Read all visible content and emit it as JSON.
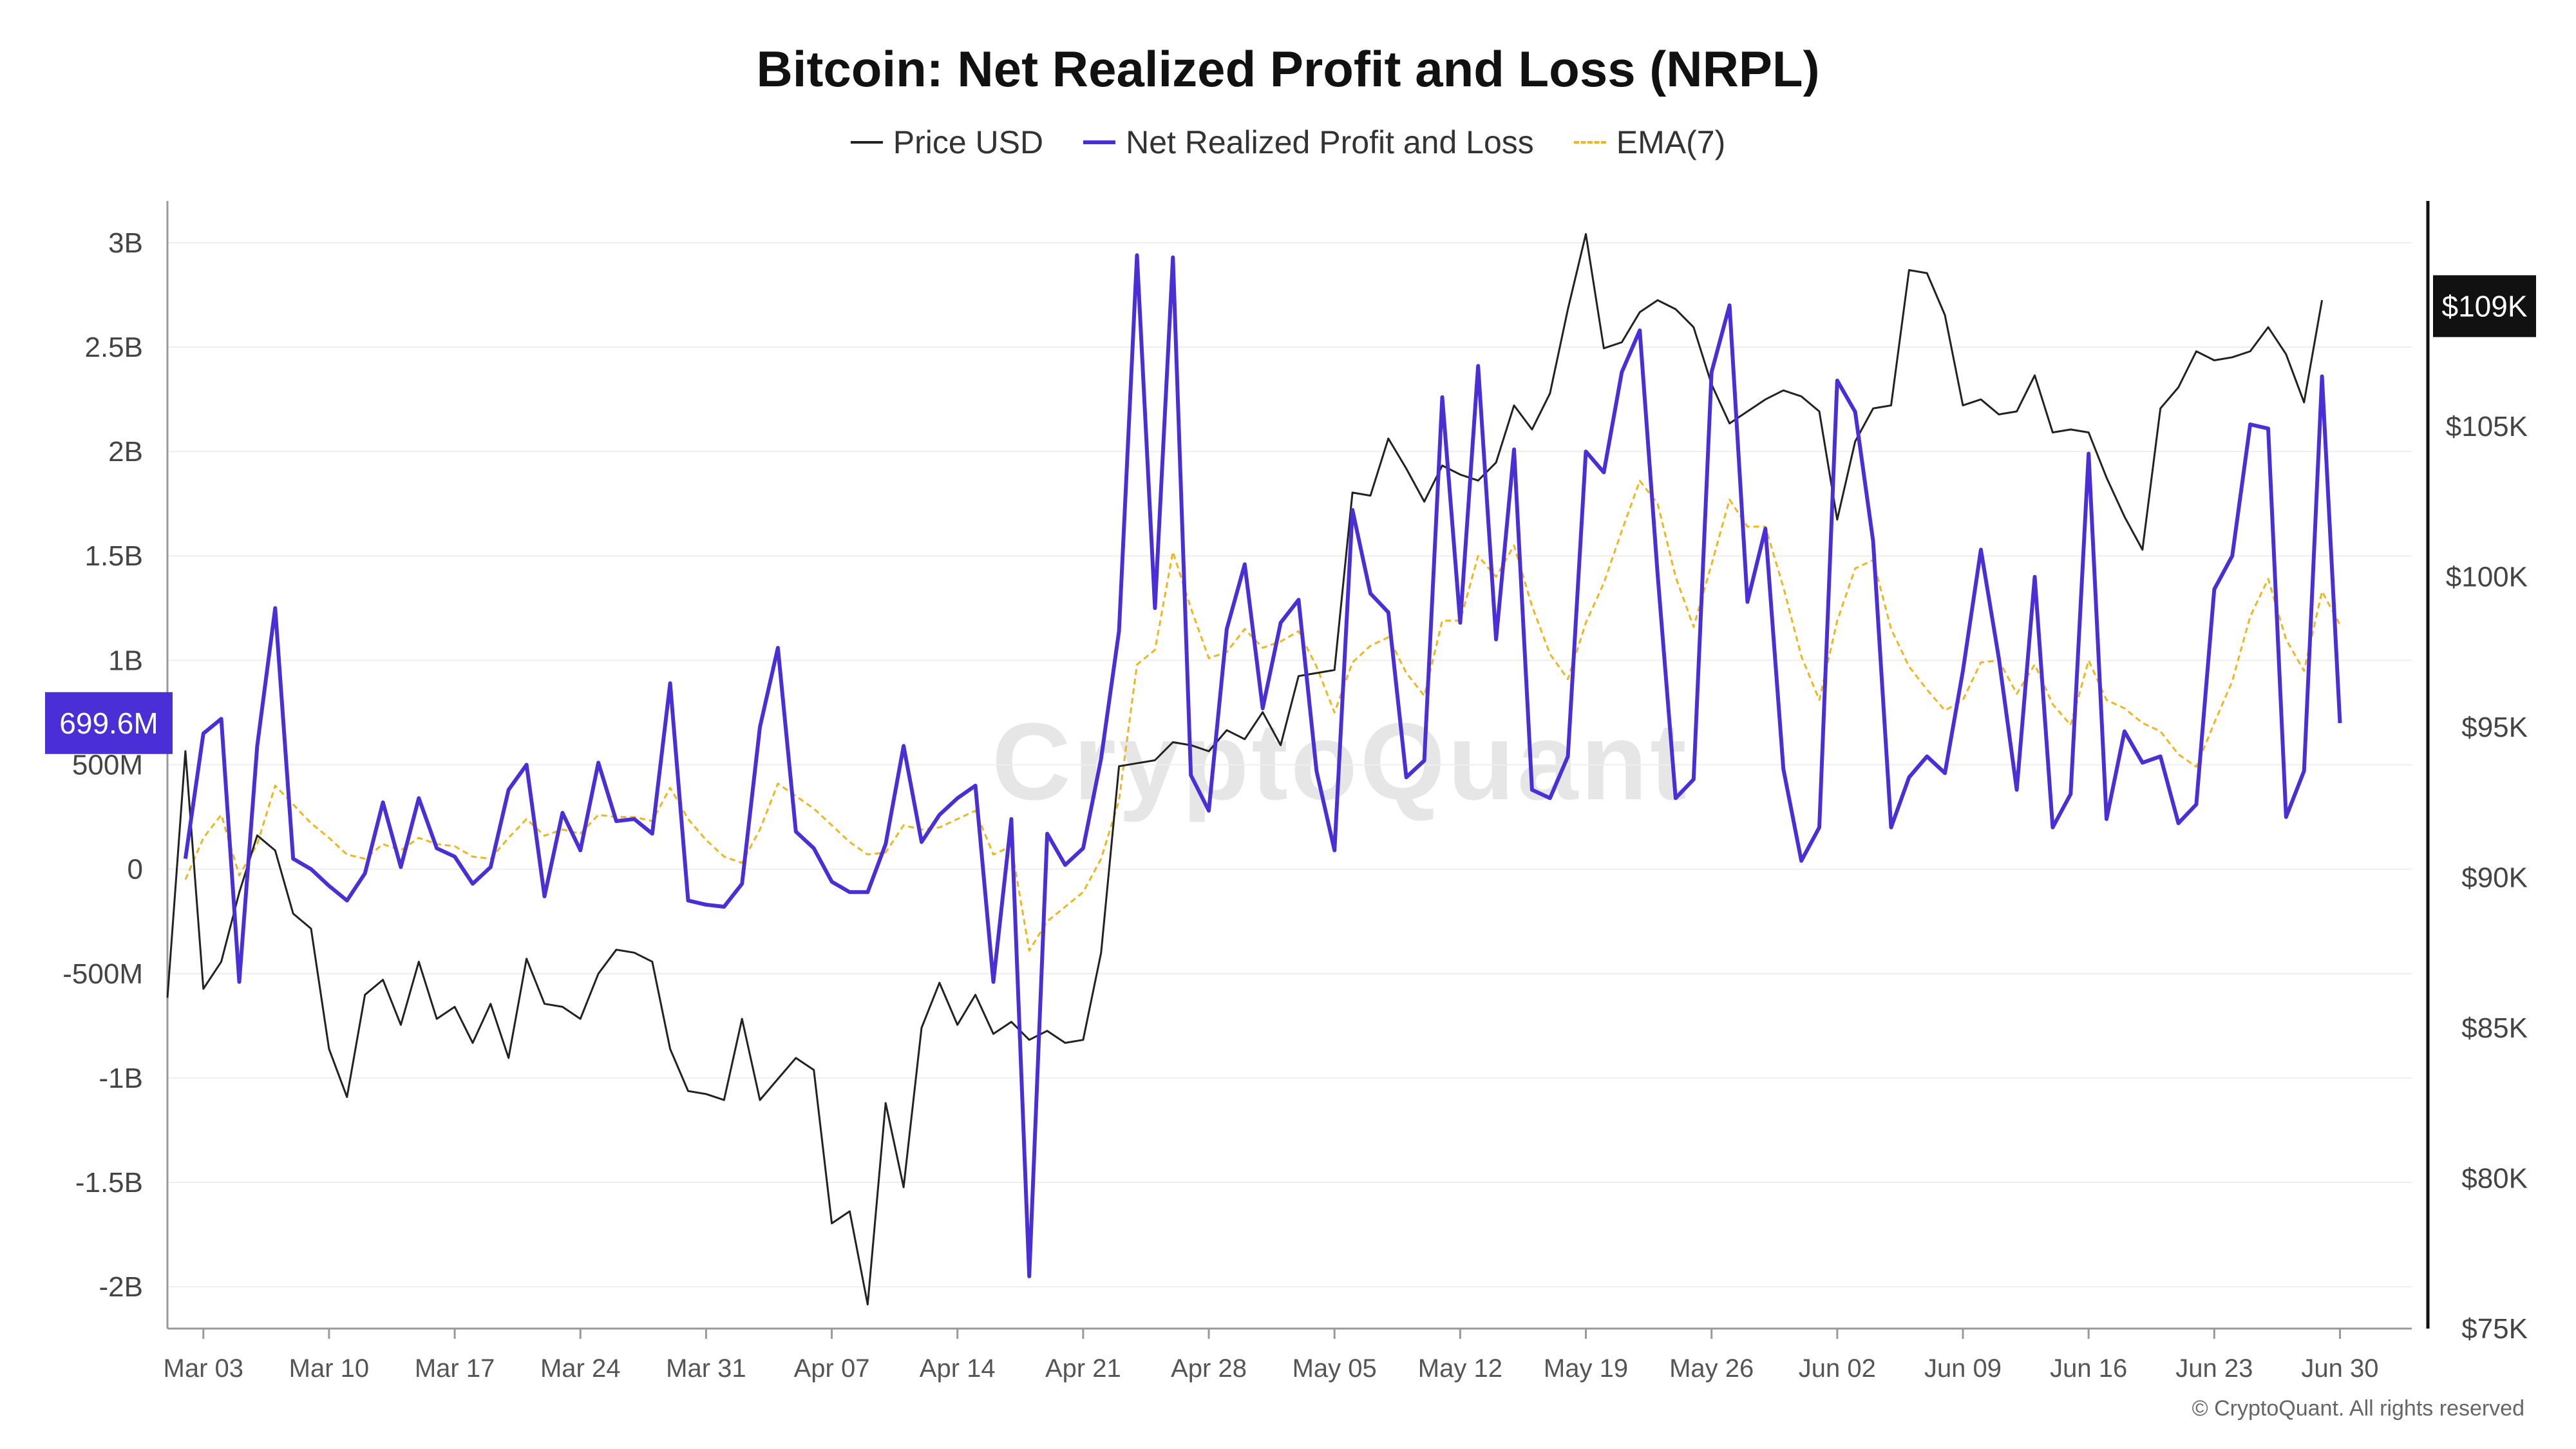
{
  "title": "Bitcoin: Net Realized Profit and Loss (NRPL)",
  "watermark": "CryptoQuant",
  "credit": "© CryptoQuant. All rights reserved",
  "colors": {
    "price": "#222222",
    "nrpl": "#4b2fd6",
    "ema": "#f2b51c",
    "price_badge_bg": "#111111",
    "nrpl_badge_bg": "#4b2fd6"
  },
  "chart_data": {
    "type": "line",
    "title": "Bitcoin: Net Realized Profit and Loss (NRPL)",
    "legend_position": "top-center",
    "grid": true,
    "x_tick_labels": [
      "Mar 03",
      "Mar 10",
      "Mar 17",
      "Mar 24",
      "Mar 31",
      "Apr 07",
      "Apr 14",
      "Apr 21",
      "Apr 28",
      "May 05",
      "May 12",
      "May 19",
      "May 26",
      "Jun 02",
      "Jun 09",
      "Jun 16",
      "Jun 23",
      "Jun 30"
    ],
    "x_range": [
      "2025-03-01",
      "2025-07-04"
    ],
    "left_axis": {
      "ylim": [
        -2200000000,
        3200000000
      ],
      "tick_labels": [
        "3B",
        "2.5B",
        "2B",
        "1.5B",
        "1B",
        "500M",
        "0",
        "-500M",
        "-1B",
        "-1.5B",
        "-2B"
      ],
      "tick_values": [
        3000000000,
        2500000000,
        2000000000,
        1500000000,
        1000000000,
        500000000,
        0,
        -500000000,
        -1000000000,
        -1500000000,
        -2000000000
      ]
    },
    "right_axis": {
      "ylim": [
        75000,
        112500
      ],
      "tick_labels": [
        "$105K",
        "$100K",
        "$95K",
        "$90K",
        "$85K",
        "$80K",
        "$75K"
      ],
      "tick_values": [
        105000,
        100000,
        95000,
        90000,
        85000,
        80000,
        75000
      ]
    },
    "current_values": {
      "nrpl_label": "699.6M",
      "nrpl_value": 699600000,
      "price_label": "$109K",
      "price_value": 109000
    },
    "series": [
      {
        "name": "Price USD",
        "axis": "right",
        "start": "2025-03-01",
        "values": [
          86000,
          94200,
          86300,
          87200,
          89500,
          91400,
          90900,
          88800,
          88300,
          84300,
          82700,
          86100,
          86600,
          85100,
          87200,
          85300,
          85700,
          84500,
          85800,
          84000,
          87300,
          85800,
          85700,
          85300,
          86800,
          87600,
          87500,
          87200,
          84300,
          82900,
          82800,
          82600,
          85300,
          82600,
          83300,
          84000,
          83600,
          78500,
          78900,
          75800,
          82500,
          79700,
          85000,
          86500,
          85100,
          86100,
          84800,
          85200,
          84600,
          84900,
          84500,
          84600,
          87500,
          93700,
          93800,
          93900,
          94500,
          94400,
          94200,
          94900,
          94600,
          95500,
          94400,
          96700,
          96800,
          96900,
          102800,
          102700,
          104600,
          103600,
          102500,
          103700,
          103400,
          103200,
          103800,
          105700,
          104900,
          106100,
          108900,
          111400,
          107600,
          107800,
          108800,
          109200,
          108900,
          108300,
          106400,
          105100,
          105500,
          105900,
          106200,
          106000,
          105500,
          101900,
          104500,
          105600,
          105700,
          110200,
          110100,
          108700,
          105700,
          105900,
          105400,
          105500,
          106700,
          104800,
          104900,
          104800,
          103300,
          102000,
          100900,
          105600,
          106300,
          107500,
          107200,
          107300,
          107500,
          108300,
          107400,
          105800,
          109200
        ]
      },
      {
        "name": "Net Realized Profit and Loss",
        "axis": "left",
        "start": "2025-03-02",
        "values": [
          50000000,
          650000000,
          720000000,
          -540000000,
          590000000,
          1250000000,
          50000000,
          0,
          -80000000,
          -150000000,
          -20000000,
          320000000,
          10000000,
          340000000,
          100000000,
          60000000,
          -70000000,
          10000000,
          380000000,
          500000000,
          -130000000,
          270000000,
          90000000,
          510000000,
          230000000,
          240000000,
          170000000,
          890000000,
          -150000000,
          -170000000,
          -180000000,
          -70000000,
          680000000,
          1060000000,
          180000000,
          100000000,
          -60000000,
          -110000000,
          -110000000,
          120000000,
          590000000,
          130000000,
          260000000,
          340000000,
          400000000,
          -540000000,
          240000000,
          -1950000000,
          170000000,
          20000000,
          100000000,
          530000000,
          1140000000,
          2940000000,
          1250000000,
          2930000000,
          450000000,
          280000000,
          1150000000,
          1460000000,
          770000000,
          1180000000,
          1290000000,
          470000000,
          90000000,
          1720000000,
          1320000000,
          1230000000,
          440000000,
          520000000,
          2260000000,
          1180000000,
          2410000000,
          1100000000,
          2010000000,
          380000000,
          340000000,
          540000000,
          2000000000,
          1900000000,
          2380000000,
          2580000000,
          1410000000,
          340000000,
          430000000,
          2380000000,
          2700000000,
          1280000000,
          1630000000,
          480000000,
          40000000,
          200000000,
          2340000000,
          2190000000,
          1570000000,
          200000000,
          440000000,
          540000000,
          460000000,
          950000000,
          1530000000,
          1010000000,
          380000000,
          1400000000,
          200000000,
          360000000,
          1990000000,
          240000000,
          660000000,
          510000000,
          540000000,
          220000000,
          310000000,
          1340000000,
          1500000000,
          2130000000,
          2110000000,
          250000000,
          470000000,
          2360000000,
          699600000
        ]
      },
      {
        "name": "EMA(7)",
        "axis": "left",
        "start": "2025-03-02",
        "values": [
          -50000000,
          150000000,
          260000000,
          -30000000,
          120000000,
          400000000,
          310000000,
          220000000,
          150000000,
          70000000,
          50000000,
          120000000,
          90000000,
          150000000,
          120000000,
          110000000,
          60000000,
          50000000,
          150000000,
          240000000,
          160000000,
          190000000,
          170000000,
          260000000,
          250000000,
          250000000,
          230000000,
          390000000,
          240000000,
          140000000,
          60000000,
          30000000,
          190000000,
          410000000,
          350000000,
          290000000,
          210000000,
          130000000,
          70000000,
          80000000,
          210000000,
          190000000,
          200000000,
          240000000,
          280000000,
          70000000,
          110000000,
          -390000000,
          -250000000,
          -180000000,
          -110000000,
          50000000,
          330000000,
          980000000,
          1050000000,
          1520000000,
          1250000000,
          1010000000,
          1040000000,
          1150000000,
          1060000000,
          1090000000,
          1140000000,
          970000000,
          750000000,
          990000000,
          1070000000,
          1110000000,
          940000000,
          830000000,
          1190000000,
          1190000000,
          1500000000,
          1400000000,
          1550000000,
          1260000000,
          1030000000,
          910000000,
          1180000000,
          1370000000,
          1620000000,
          1860000000,
          1750000000,
          1400000000,
          1160000000,
          1460000000,
          1770000000,
          1640000000,
          1640000000,
          1350000000,
          1020000000,
          810000000,
          1190000000,
          1440000000,
          1480000000,
          1150000000,
          970000000,
          860000000,
          760000000,
          810000000,
          990000000,
          1000000000,
          840000000,
          980000000,
          790000000,
          690000000,
          1000000000,
          810000000,
          770000000,
          700000000,
          660000000,
          550000000,
          490000000,
          700000000,
          900000000,
          1210000000,
          1390000000,
          1100000000,
          950000000,
          1330000000,
          1170000000
        ]
      }
    ]
  }
}
